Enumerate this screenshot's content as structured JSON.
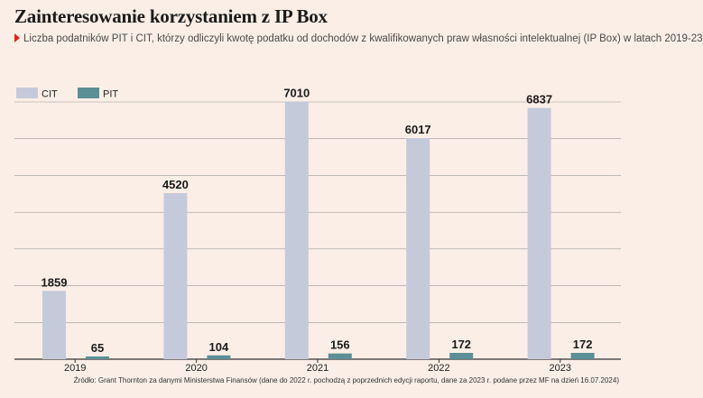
{
  "title": "Zainteresowanie korzystaniem z IP Box",
  "subtitle": "Liczba podatników PIT i CIT, którzy odliczyli kwotę podatku od dochodów z kwalifikowanych praw własności intelektualnej (IP Box) w latach 2019-23",
  "source": "Źródło: Grant Thornton za danymi Ministerstwa Finansów (dane do 2022 r. pochodzą z poprzednich edycji raportu, dane za 2023 r. podane przez MF na dzień 16.07.2024)",
  "colors": {
    "cit": "#c5cada",
    "pit": "#5b8f96",
    "grid": "#999999",
    "axis": "#333333",
    "accent": "#e2231a"
  },
  "chart_data": {
    "type": "bar",
    "categories": [
      "2019",
      "2020",
      "2021",
      "2022",
      "2023"
    ],
    "series": [
      {
        "name": "CIT",
        "values": [
          1859,
          4520,
          7010,
          6017,
          6837
        ]
      },
      {
        "name": "PIT",
        "values": [
          65,
          104,
          156,
          172,
          172
        ]
      }
    ],
    "ylim": [
      0,
      7000
    ],
    "grid": true,
    "legend": "top-left"
  }
}
